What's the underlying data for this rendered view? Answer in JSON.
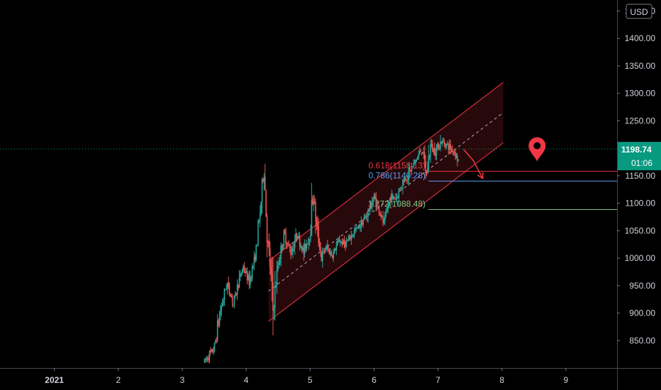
{
  "chart_data": {
    "type": "candlestick",
    "currency": "USD",
    "y_ticks": [
      "1450.00",
      "1400.00",
      "1350.00",
      "1300.00",
      "1250.00",
      "1200.00",
      "1150.00",
      "1100.00",
      "1050.00",
      "1000.00",
      "950.00",
      "900.00",
      "850.00"
    ],
    "y_tick_values": [
      1450,
      1400,
      1350,
      1300,
      1250,
      1200,
      1150,
      1100,
      1050,
      1000,
      950,
      900,
      850
    ],
    "ylim": [
      800,
      1470
    ],
    "x_ticks": [
      "2021",
      "2",
      "3",
      "4",
      "5",
      "6",
      "7",
      "8",
      "9"
    ],
    "x_tick_values": [
      1,
      2,
      3,
      4,
      5,
      6,
      7,
      8,
      9
    ],
    "xlim": [
      0.15,
      9.8
    ],
    "last_price": {
      "value": 1198.74,
      "label": "1198.74",
      "countdown": "01:06",
      "color": "#089981"
    },
    "fib_levels": [
      {
        "label": "0.618(1158.13)",
        "value": 1158.13,
        "color": "#f23645",
        "x_start": 6.85
      },
      {
        "label": "0.786(1140.28)",
        "value": 1140.28,
        "color": "#5b9cf6",
        "x_start": 6.85
      },
      {
        "label": "1.272(1088.48)",
        "value": 1088.48,
        "color": "#81c784",
        "x_start": 6.85
      }
    ],
    "channel": {
      "start": {
        "x": 4.35,
        "y": 885
      },
      "end": {
        "x": 8.02,
        "y": 1210
      },
      "width": 110,
      "color": "#f23645"
    },
    "price_path": [
      [
        3.35,
        812
      ],
      [
        3.5,
        835
      ],
      [
        3.6,
        905
      ],
      [
        3.7,
        955
      ],
      [
        3.8,
        918
      ],
      [
        3.95,
        985
      ],
      [
        4.05,
        958
      ],
      [
        4.15,
        1005
      ],
      [
        4.22,
        1088
      ],
      [
        4.28,
        1165
      ],
      [
        4.33,
        1038
      ],
      [
        4.38,
        980
      ],
      [
        4.42,
        905
      ],
      [
        4.5,
        990
      ],
      [
        4.6,
        1042
      ],
      [
        4.7,
        1010
      ],
      [
        4.8,
        1045
      ],
      [
        4.9,
        1010
      ],
      [
        5.0,
        1048
      ],
      [
        5.05,
        1118
      ],
      [
        5.1,
        1060
      ],
      [
        5.18,
        1000
      ],
      [
        5.25,
        1020
      ],
      [
        5.35,
        1005
      ],
      [
        5.45,
        1032
      ],
      [
        5.55,
        1025
      ],
      [
        5.7,
        1050
      ],
      [
        5.8,
        1062
      ],
      [
        5.9,
        1082
      ],
      [
        6.0,
        1110
      ],
      [
        6.08,
        1090
      ],
      [
        6.15,
        1062
      ],
      [
        6.25,
        1110
      ],
      [
        6.35,
        1110
      ],
      [
        6.45,
        1140
      ],
      [
        6.55,
        1155
      ],
      [
        6.65,
        1178
      ],
      [
        6.75,
        1200
      ],
      [
        6.82,
        1150
      ],
      [
        6.88,
        1205
      ],
      [
        6.95,
        1195
      ],
      [
        7.05,
        1212
      ],
      [
        7.15,
        1205
      ],
      [
        7.25,
        1195
      ],
      [
        7.32,
        1178
      ]
    ],
    "arrows": [
      {
        "points": [
          [
            7.4,
            1198
          ],
          [
            7.55,
            1178
          ],
          [
            7.7,
            1145
          ]
        ],
        "color": "#f23645"
      }
    ],
    "marker": {
      "x": 8.55,
      "y": 1197,
      "icon": "location-pin-icon",
      "color": "#f23645"
    }
  }
}
